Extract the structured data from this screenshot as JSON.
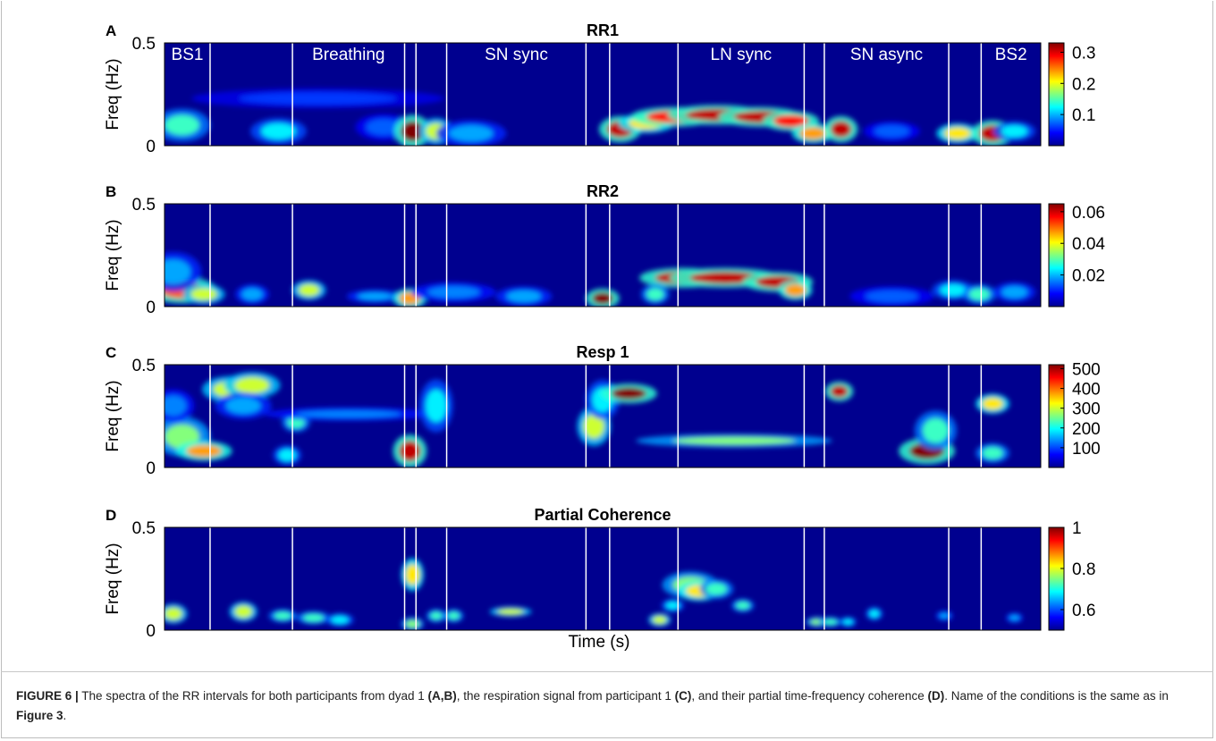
{
  "figure": {
    "time_label": "Time (s)",
    "caption": {
      "label": "FIGURE 6 |",
      "t1": " The spectra of the RR intervals for both participants from dyad 1 ",
      "b1": "(A,B)",
      "t2": ", the respiration signal from participant 1 ",
      "b2": "(C)",
      "t3": ", and their partial time-frequency coherence ",
      "b3": "(D)",
      "t4": ". Name of the conditions is the same as in ",
      "b4": "Figure 3",
      "t5": "."
    }
  },
  "chart_data": [
    {
      "type": "heatmap",
      "panel": "A",
      "title": "RR1",
      "ylabel": "Freq (Hz)",
      "ylim": [
        0,
        0.5
      ],
      "yticks": [
        "0.5",
        "0"
      ],
      "conditions": [
        "BS1",
        "Breathing",
        "SN sync",
        "LN sync",
        "SN async",
        "BS2"
      ],
      "condition_boundaries": [
        0.052,
        0.146,
        0.274,
        0.287,
        0.322,
        0.481,
        0.508,
        0.586,
        0.73,
        0.753,
        0.895,
        0.932
      ],
      "colorbar": {
        "ticks": [
          "0.3",
          "0.2",
          "0.1"
        ],
        "tick_values": [
          0.3,
          0.2,
          0.1
        ],
        "range": [
          0,
          0.33
        ]
      },
      "hotspots": [
        {
          "t": 0.02,
          "f": 0.1,
          "w": 0.02,
          "h": 0.05,
          "v": 0.6
        },
        {
          "t": 0.13,
          "f": 0.07,
          "w": 0.02,
          "h": 0.04,
          "v": 0.5
        },
        {
          "t": 0.175,
          "f": 0.23,
          "w": 0.09,
          "h": 0.03,
          "v": 0.25
        },
        {
          "t": 0.25,
          "f": 0.09,
          "w": 0.02,
          "h": 0.04,
          "v": 0.3
        },
        {
          "t": 0.283,
          "f": 0.07,
          "w": 0.013,
          "h": 0.05,
          "v": 1.4
        },
        {
          "t": 0.31,
          "f": 0.07,
          "w": 0.012,
          "h": 0.04,
          "v": 0.8
        },
        {
          "t": 0.35,
          "f": 0.06,
          "w": 0.025,
          "h": 0.04,
          "v": 0.4
        },
        {
          "t": 0.52,
          "f": 0.08,
          "w": 0.015,
          "h": 0.04,
          "v": 1.3
        },
        {
          "t": 0.55,
          "f": 0.11,
          "w": 0.02,
          "h": 0.03,
          "v": 0.9
        },
        {
          "t": 0.58,
          "f": 0.14,
          "w": 0.03,
          "h": 0.03,
          "v": 1.2
        },
        {
          "t": 0.63,
          "f": 0.15,
          "w": 0.035,
          "h": 0.03,
          "v": 1.3
        },
        {
          "t": 0.68,
          "f": 0.14,
          "w": 0.03,
          "h": 0.03,
          "v": 1.3
        },
        {
          "t": 0.715,
          "f": 0.12,
          "w": 0.02,
          "h": 0.03,
          "v": 1.2
        },
        {
          "t": 0.74,
          "f": 0.06,
          "w": 0.015,
          "h": 0.03,
          "v": 1.0
        },
        {
          "t": 0.772,
          "f": 0.08,
          "w": 0.012,
          "h": 0.04,
          "v": 1.3
        },
        {
          "t": 0.83,
          "f": 0.07,
          "w": 0.02,
          "h": 0.03,
          "v": 0.3
        },
        {
          "t": 0.905,
          "f": 0.06,
          "w": 0.015,
          "h": 0.03,
          "v": 0.9
        },
        {
          "t": 0.945,
          "f": 0.06,
          "w": 0.015,
          "h": 0.04,
          "v": 1.3
        },
        {
          "t": 0.97,
          "f": 0.07,
          "w": 0.015,
          "h": 0.03,
          "v": 0.5
        }
      ]
    },
    {
      "type": "heatmap",
      "panel": "B",
      "title": "RR2",
      "ylabel": "Freq (Hz)",
      "ylim": [
        0,
        0.5
      ],
      "yticks": [
        "0.5",
        "0"
      ],
      "condition_boundaries": [
        0.052,
        0.146,
        0.274,
        0.287,
        0.322,
        0.481,
        0.508,
        0.586,
        0.73,
        0.753,
        0.895,
        0.932
      ],
      "colorbar": {
        "ticks": [
          "0.06",
          "0.04",
          "0.02"
        ],
        "tick_values": [
          0.06,
          0.04,
          0.02
        ],
        "range": [
          0,
          0.065
        ]
      },
      "hotspots": [
        {
          "t": 0.02,
          "f": 0.08,
          "w": 0.025,
          "h": 0.04,
          "v": 1.1
        },
        {
          "t": 0.01,
          "f": 0.17,
          "w": 0.02,
          "h": 0.06,
          "v": 0.4
        },
        {
          "t": 0.045,
          "f": 0.06,
          "w": 0.015,
          "h": 0.03,
          "v": 0.8
        },
        {
          "t": 0.1,
          "f": 0.06,
          "w": 0.012,
          "h": 0.03,
          "v": 0.4
        },
        {
          "t": 0.165,
          "f": 0.08,
          "w": 0.012,
          "h": 0.03,
          "v": 0.8
        },
        {
          "t": 0.24,
          "f": 0.05,
          "w": 0.02,
          "h": 0.02,
          "v": 0.4
        },
        {
          "t": 0.28,
          "f": 0.04,
          "w": 0.012,
          "h": 0.03,
          "v": 1.0
        },
        {
          "t": 0.33,
          "f": 0.07,
          "w": 0.03,
          "h": 0.03,
          "v": 0.35
        },
        {
          "t": 0.41,
          "f": 0.05,
          "w": 0.02,
          "h": 0.03,
          "v": 0.4
        },
        {
          "t": 0.5,
          "f": 0.04,
          "w": 0.012,
          "h": 0.03,
          "v": 1.4
        },
        {
          "t": 0.59,
          "f": 0.14,
          "w": 0.03,
          "h": 0.03,
          "v": 1.3
        },
        {
          "t": 0.64,
          "f": 0.14,
          "w": 0.04,
          "h": 0.03,
          "v": 1.3
        },
        {
          "t": 0.7,
          "f": 0.12,
          "w": 0.025,
          "h": 0.03,
          "v": 1.3
        },
        {
          "t": 0.72,
          "f": 0.08,
          "w": 0.012,
          "h": 0.03,
          "v": 1.0
        },
        {
          "t": 0.56,
          "f": 0.06,
          "w": 0.01,
          "h": 0.03,
          "v": 0.6
        },
        {
          "t": 0.83,
          "f": 0.05,
          "w": 0.03,
          "h": 0.03,
          "v": 0.3
        },
        {
          "t": 0.9,
          "f": 0.08,
          "w": 0.015,
          "h": 0.03,
          "v": 0.5
        },
        {
          "t": 0.93,
          "f": 0.06,
          "w": 0.012,
          "h": 0.03,
          "v": 0.6
        },
        {
          "t": 0.97,
          "f": 0.07,
          "w": 0.015,
          "h": 0.03,
          "v": 0.4
        }
      ]
    },
    {
      "type": "heatmap",
      "panel": "C",
      "title": "Resp 1",
      "ylabel": "Freq (Hz)",
      "ylim": [
        0,
        0.5
      ],
      "yticks": [
        "0.5",
        "0"
      ],
      "condition_boundaries": [
        0.052,
        0.146,
        0.274,
        0.287,
        0.322,
        0.481,
        0.508,
        0.586,
        0.73,
        0.753,
        0.895,
        0.932
      ],
      "colorbar": {
        "ticks": [
          "500",
          "400",
          "300",
          "200",
          "100"
        ],
        "tick_values": [
          500,
          400,
          300,
          200,
          100
        ],
        "range": [
          0,
          520
        ]
      },
      "hotspots": [
        {
          "t": 0.02,
          "f": 0.15,
          "w": 0.02,
          "h": 0.06,
          "v": 0.7
        },
        {
          "t": 0.045,
          "f": 0.08,
          "w": 0.02,
          "h": 0.03,
          "v": 1.0
        },
        {
          "t": 0.01,
          "f": 0.3,
          "w": 0.015,
          "h": 0.05,
          "v": 0.35
        },
        {
          "t": 0.075,
          "f": 0.38,
          "w": 0.02,
          "h": 0.04,
          "v": 0.8
        },
        {
          "t": 0.1,
          "f": 0.4,
          "w": 0.02,
          "h": 0.04,
          "v": 0.8
        },
        {
          "t": 0.09,
          "f": 0.3,
          "w": 0.02,
          "h": 0.04,
          "v": 0.4
        },
        {
          "t": 0.15,
          "f": 0.22,
          "w": 0.01,
          "h": 0.03,
          "v": 0.6
        },
        {
          "t": 0.21,
          "f": 0.26,
          "w": 0.06,
          "h": 0.02,
          "v": 0.35
        },
        {
          "t": 0.14,
          "f": 0.06,
          "w": 0.01,
          "h": 0.03,
          "v": 0.5
        },
        {
          "t": 0.28,
          "f": 0.08,
          "w": 0.012,
          "h": 0.05,
          "v": 1.3
        },
        {
          "t": 0.31,
          "f": 0.3,
          "w": 0.012,
          "h": 0.08,
          "v": 0.5
        },
        {
          "t": 0.49,
          "f": 0.2,
          "w": 0.012,
          "h": 0.06,
          "v": 0.8
        },
        {
          "t": 0.5,
          "f": 0.33,
          "w": 0.012,
          "h": 0.06,
          "v": 0.5
        },
        {
          "t": 0.53,
          "f": 0.36,
          "w": 0.02,
          "h": 0.03,
          "v": 1.4
        },
        {
          "t": 0.65,
          "f": 0.13,
          "w": 0.07,
          "h": 0.02,
          "v": 0.7
        },
        {
          "t": 0.77,
          "f": 0.37,
          "w": 0.01,
          "h": 0.03,
          "v": 1.3
        },
        {
          "t": 0.87,
          "f": 0.08,
          "w": 0.02,
          "h": 0.04,
          "v": 1.4
        },
        {
          "t": 0.88,
          "f": 0.18,
          "w": 0.015,
          "h": 0.06,
          "v": 0.6
        },
        {
          "t": 0.945,
          "f": 0.31,
          "w": 0.012,
          "h": 0.03,
          "v": 0.9
        },
        {
          "t": 0.945,
          "f": 0.07,
          "w": 0.012,
          "h": 0.03,
          "v": 0.6
        }
      ]
    },
    {
      "type": "heatmap",
      "panel": "D",
      "title": "Partial Coherence",
      "ylabel": "Freq (Hz)",
      "ylim": [
        0,
        0.5
      ],
      "yticks": [
        "0.5",
        "0"
      ],
      "condition_boundaries": [
        0.052,
        0.146,
        0.274,
        0.287,
        0.322,
        0.481,
        0.508,
        0.586,
        0.73,
        0.753,
        0.895,
        0.932
      ],
      "colorbar": {
        "ticks": [
          "1",
          "0.8",
          "0.6"
        ],
        "tick_values": [
          1,
          0.8,
          0.6
        ],
        "range": [
          0.5,
          1
        ]
      },
      "hotspots": [
        {
          "t": 0.01,
          "f": 0.08,
          "w": 0.01,
          "h": 0.03,
          "v": 0.8
        },
        {
          "t": 0.09,
          "f": 0.09,
          "w": 0.01,
          "h": 0.03,
          "v": 0.8
        },
        {
          "t": 0.135,
          "f": 0.07,
          "w": 0.01,
          "h": 0.02,
          "v": 0.6
        },
        {
          "t": 0.17,
          "f": 0.06,
          "w": 0.012,
          "h": 0.02,
          "v": 0.6
        },
        {
          "t": 0.2,
          "f": 0.05,
          "w": 0.01,
          "h": 0.02,
          "v": 0.5
        },
        {
          "t": 0.283,
          "f": 0.27,
          "w": 0.008,
          "h": 0.05,
          "v": 0.9
        },
        {
          "t": 0.283,
          "f": 0.03,
          "w": 0.008,
          "h": 0.02,
          "v": 0.7
        },
        {
          "t": 0.31,
          "f": 0.07,
          "w": 0.007,
          "h": 0.02,
          "v": 0.6
        },
        {
          "t": 0.33,
          "f": 0.07,
          "w": 0.007,
          "h": 0.02,
          "v": 0.6
        },
        {
          "t": 0.395,
          "f": 0.09,
          "w": 0.015,
          "h": 0.015,
          "v": 0.8
        },
        {
          "t": 0.6,
          "f": 0.22,
          "w": 0.02,
          "h": 0.04,
          "v": 0.7
        },
        {
          "t": 0.61,
          "f": 0.19,
          "w": 0.015,
          "h": 0.03,
          "v": 0.9
        },
        {
          "t": 0.63,
          "f": 0.2,
          "w": 0.012,
          "h": 0.03,
          "v": 0.6
        },
        {
          "t": 0.565,
          "f": 0.05,
          "w": 0.008,
          "h": 0.02,
          "v": 0.8
        },
        {
          "t": 0.58,
          "f": 0.12,
          "w": 0.008,
          "h": 0.02,
          "v": 0.5
        },
        {
          "t": 0.66,
          "f": 0.12,
          "w": 0.008,
          "h": 0.02,
          "v": 0.6
        },
        {
          "t": 0.745,
          "f": 0.04,
          "w": 0.008,
          "h": 0.015,
          "v": 0.7
        },
        {
          "t": 0.76,
          "f": 0.04,
          "w": 0.008,
          "h": 0.015,
          "v": 0.6
        },
        {
          "t": 0.78,
          "f": 0.04,
          "w": 0.006,
          "h": 0.015,
          "v": 0.5
        },
        {
          "t": 0.81,
          "f": 0.08,
          "w": 0.006,
          "h": 0.02,
          "v": 0.5
        },
        {
          "t": 0.89,
          "f": 0.07,
          "w": 0.006,
          "h": 0.015,
          "v": 0.4
        },
        {
          "t": 0.97,
          "f": 0.06,
          "w": 0.006,
          "h": 0.015,
          "v": 0.4
        }
      ]
    }
  ]
}
